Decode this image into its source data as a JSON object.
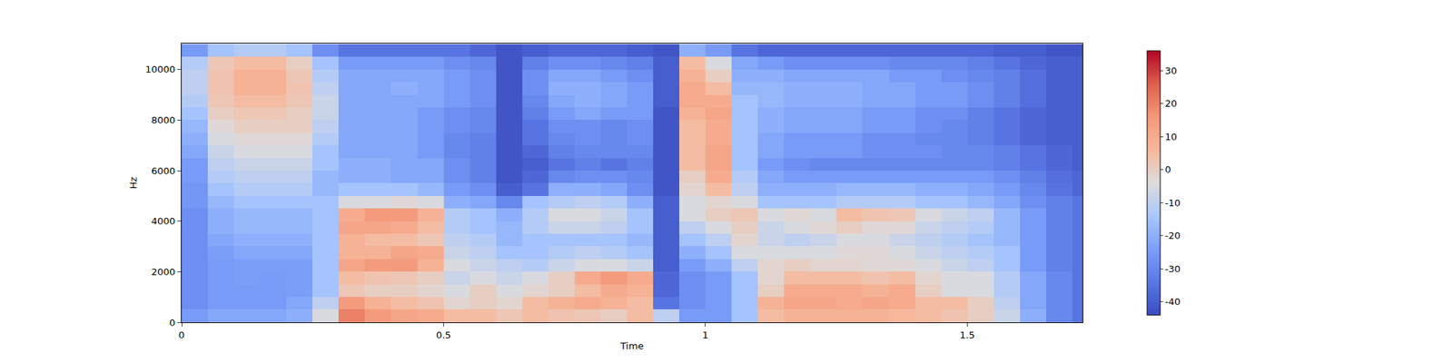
{
  "chart_data": {
    "type": "heatmap",
    "x_label": "Time",
    "y_label": "Hz",
    "xlim": [
      0,
      1.72
    ],
    "ylim": [
      0,
      11025
    ],
    "xticks": [
      0,
      0.5,
      1,
      1.5
    ],
    "yticks": [
      0,
      2000,
      4000,
      6000,
      8000,
      10000
    ],
    "colorbar_range": [
      -44,
      36
    ],
    "colorbar_ticks": [
      -40,
      -30,
      -20,
      -10,
      0,
      10,
      20,
      30
    ],
    "x": [
      0.025,
      0.075,
      0.125,
      0.175,
      0.225,
      0.275,
      0.325,
      0.375,
      0.425,
      0.475,
      0.525,
      0.575,
      0.625,
      0.675,
      0.725,
      0.775,
      0.825,
      0.875,
      0.925,
      0.975,
      1.025,
      1.075,
      1.125,
      1.175,
      1.225,
      1.275,
      1.325,
      1.375,
      1.425,
      1.475,
      1.525,
      1.575,
      1.625,
      1.675,
      1.725
    ],
    "y": [
      250,
      750,
      1250,
      1750,
      2250,
      2750,
      3250,
      3750,
      4250,
      4750,
      5250,
      5750,
      6250,
      6750,
      7250,
      7750,
      8250,
      8750,
      9250,
      9750,
      10250,
      10750
    ],
    "cells": [
      [
        -25,
        -22,
        -22,
        -22,
        -20,
        -5,
        20,
        15,
        12,
        10,
        5,
        5,
        2,
        5,
        3,
        2,
        0,
        5,
        -10,
        -25,
        -25,
        -15,
        5,
        8,
        8,
        8,
        8,
        6,
        5,
        3,
        0,
        -8,
        -20,
        -30,
        -35
      ],
      [
        -28,
        -25,
        -25,
        -25,
        -22,
        -10,
        15,
        8,
        5,
        3,
        -2,
        0,
        -2,
        5,
        8,
        10,
        8,
        5,
        -35,
        -28,
        -25,
        -15,
        8,
        12,
        12,
        10,
        12,
        10,
        5,
        5,
        0,
        -10,
        -22,
        -30,
        -35
      ],
      [
        -28,
        -25,
        -25,
        -25,
        -24,
        -15,
        2,
        0,
        0,
        -2,
        -5,
        0,
        -5,
        -2,
        0,
        5,
        10,
        8,
        -38,
        -28,
        -25,
        -15,
        0,
        10,
        10,
        10,
        8,
        10,
        0,
        -5,
        -5,
        -12,
        -22,
        -30,
        -35
      ],
      [
        -28,
        -25,
        -24,
        -25,
        -24,
        -15,
        5,
        3,
        2,
        0,
        -8,
        -5,
        -8,
        -5,
        0,
        10,
        15,
        10,
        -38,
        -28,
        -25,
        -15,
        -2,
        5,
        5,
        5,
        3,
        5,
        -2,
        -5,
        -5,
        -12,
        -22,
        -30,
        -35
      ],
      [
        -28,
        -25,
        -24,
        -24,
        -24,
        -15,
        12,
        15,
        15,
        8,
        -5,
        -8,
        -10,
        -12,
        -8,
        -5,
        -5,
        -8,
        -40,
        -25,
        -20,
        -10,
        -2,
        0,
        -2,
        -2,
        -3,
        -3,
        -5,
        -8,
        -10,
        -15,
        -25,
        -32,
        -35
      ],
      [
        -28,
        -24,
        -22,
        -22,
        -22,
        -15,
        8,
        8,
        12,
        10,
        -8,
        -10,
        -15,
        -15,
        -12,
        -10,
        -12,
        -15,
        -40,
        -20,
        -15,
        -5,
        -5,
        -5,
        -5,
        -3,
        -3,
        -5,
        -8,
        -10,
        -12,
        -15,
        -25,
        -32,
        -35
      ],
      [
        -28,
        -22,
        -20,
        -20,
        -20,
        -15,
        8,
        5,
        5,
        2,
        -10,
        -12,
        -18,
        -15,
        -15,
        -15,
        -15,
        -18,
        -40,
        -15,
        -10,
        -2,
        -8,
        -10,
        -8,
        -5,
        -5,
        -8,
        -10,
        -12,
        -15,
        -18,
        -25,
        -32,
        -35
      ],
      [
        -28,
        -20,
        -18,
        -18,
        -18,
        -15,
        12,
        12,
        10,
        5,
        -12,
        -15,
        -18,
        -12,
        -8,
        -8,
        -10,
        -15,
        -40,
        -10,
        -5,
        0,
        -8,
        -5,
        -3,
        0,
        -3,
        -3,
        -8,
        -10,
        -12,
        -18,
        -25,
        -32,
        -35
      ],
      [
        -28,
        -20,
        -18,
        -18,
        -18,
        -15,
        10,
        15,
        15,
        8,
        -12,
        -15,
        -20,
        -12,
        -5,
        -5,
        -8,
        -15,
        -40,
        -5,
        0,
        2,
        -5,
        -3,
        -5,
        5,
        3,
        2,
        -5,
        -8,
        -10,
        -18,
        -25,
        -32,
        -35
      ],
      [
        -26,
        -18,
        -15,
        -15,
        -15,
        -15,
        -5,
        -5,
        -3,
        -5,
        -20,
        -22,
        -30,
        -15,
        -12,
        -10,
        -12,
        -20,
        -40,
        -5,
        -2,
        -5,
        -15,
        -15,
        -15,
        -12,
        -12,
        -12,
        -15,
        -15,
        -18,
        -22,
        -28,
        -32,
        -35
      ],
      [
        -26,
        -15,
        -12,
        -12,
        -12,
        -18,
        -15,
        -15,
        -15,
        -18,
        -25,
        -28,
        -40,
        -35,
        -20,
        -20,
        -22,
        -28,
        -42,
        -2,
        5,
        -10,
        -20,
        -20,
        -20,
        -18,
        -18,
        -18,
        -20,
        -20,
        -22,
        -25,
        -30,
        -35,
        -38
      ],
      [
        -25,
        -12,
        -10,
        -10,
        -10,
        -18,
        -20,
        -20,
        -22,
        -22,
        -28,
        -32,
        -42,
        -38,
        -30,
        -28,
        -28,
        -30,
        -42,
        0,
        10,
        -12,
        -22,
        -25,
        -25,
        -25,
        -25,
        -25,
        -25,
        -25,
        -25,
        -28,
        -32,
        -36,
        -38
      ],
      [
        -25,
        -10,
        -8,
        -8,
        -8,
        -15,
        -20,
        -20,
        -22,
        -22,
        -28,
        -32,
        -42,
        -40,
        -35,
        -32,
        -35,
        -32,
        -42,
        5,
        12,
        -15,
        -25,
        -28,
        -30,
        -30,
        -30,
        -30,
        -30,
        -30,
        -30,
        -32,
        -35,
        -38,
        -40
      ],
      [
        -22,
        -8,
        -5,
        -5,
        -5,
        -15,
        -22,
        -22,
        -22,
        -25,
        -30,
        -32,
        -42,
        -38,
        -32,
        -30,
        -30,
        -30,
        -42,
        5,
        12,
        -15,
        -22,
        -25,
        -25,
        -25,
        -28,
        -28,
        -28,
        -30,
        -30,
        -32,
        -35,
        -38,
        -40
      ],
      [
        -20,
        -5,
        -3,
        -3,
        -3,
        -12,
        -22,
        -22,
        -22,
        -25,
        -30,
        -32,
        -42,
        -35,
        -30,
        -28,
        -30,
        -28,
        -42,
        5,
        10,
        -15,
        -22,
        -25,
        -25,
        -25,
        -28,
        -28,
        -30,
        -30,
        -32,
        -35,
        -38,
        -40,
        -40
      ],
      [
        -18,
        -3,
        0,
        0,
        0,
        -10,
        -22,
        -22,
        -22,
        -25,
        -28,
        -30,
        -42,
        -35,
        -28,
        -28,
        -30,
        -28,
        -42,
        5,
        10,
        -15,
        -20,
        -22,
        -22,
        -22,
        -25,
        -25,
        -28,
        -30,
        -32,
        -35,
        -38,
        -40,
        -40
      ],
      [
        -15,
        0,
        2,
        2,
        0,
        -8,
        -22,
        -22,
        -22,
        -25,
        -28,
        -30,
        -42,
        -32,
        -25,
        -22,
        -25,
        -25,
        -42,
        8,
        12,
        -15,
        -20,
        -22,
        -22,
        -22,
        -25,
        -25,
        -28,
        -28,
        -32,
        -35,
        -38,
        -40,
        -40
      ],
      [
        -12,
        2,
        5,
        5,
        2,
        -8,
        -22,
        -22,
        -22,
        -22,
        -25,
        -28,
        -42,
        -30,
        -22,
        -20,
        -22,
        -25,
        -40,
        10,
        10,
        -15,
        -18,
        -20,
        -20,
        -20,
        -22,
        -22,
        -25,
        -25,
        -28,
        -32,
        -36,
        -40,
        -40
      ],
      [
        -10,
        3,
        8,
        8,
        3,
        -10,
        -22,
        -22,
        -20,
        -22,
        -25,
        -28,
        -42,
        -28,
        -20,
        -20,
        -22,
        -25,
        -40,
        10,
        5,
        -18,
        -18,
        -20,
        -20,
        -20,
        -22,
        -22,
        -25,
        -25,
        -28,
        -32,
        -36,
        -40,
        -40
      ],
      [
        -10,
        3,
        8,
        8,
        2,
        -12,
        -22,
        -22,
        -22,
        -22,
        -25,
        -28,
        -42,
        -28,
        -22,
        -22,
        -25,
        -28,
        -40,
        8,
        0,
        -20,
        -20,
        -22,
        -22,
        -22,
        -22,
        -25,
        -25,
        -28,
        -30,
        -32,
        -36,
        -40,
        -40
      ],
      [
        -12,
        2,
        5,
        5,
        0,
        -15,
        -25,
        -25,
        -25,
        -25,
        -28,
        -30,
        -42,
        -32,
        -28,
        -28,
        -30,
        -32,
        -40,
        5,
        -5,
        -22,
        -25,
        -28,
        -28,
        -28,
        -28,
        -30,
        -30,
        -30,
        -32,
        -35,
        -38,
        -40,
        -40
      ],
      [
        -25,
        -15,
        -12,
        -12,
        -15,
        -28,
        -35,
        -35,
        -35,
        -35,
        -35,
        -38,
        -42,
        -40,
        -38,
        -38,
        -38,
        -40,
        -42,
        -20,
        -25,
        -35,
        -38,
        -38,
        -38,
        -38,
        -38,
        -38,
        -38,
        -38,
        -38,
        -40,
        -40,
        -42,
        -42
      ]
    ]
  }
}
